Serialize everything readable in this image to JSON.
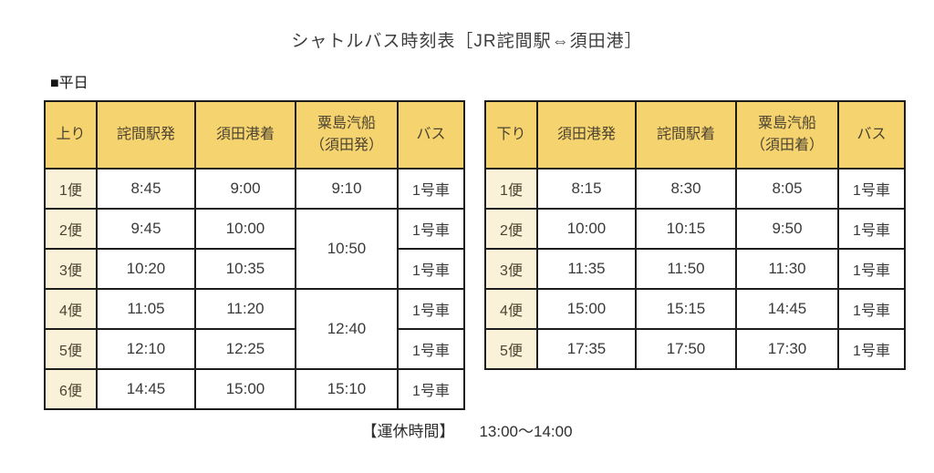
{
  "title": "シャトルバス時刻表［JR詫間駅⇔須田港］",
  "section_label": "■平日",
  "colors": {
    "header_bg": "#f5d36f",
    "trip_bg": "#faf2d8",
    "border": "#1d1d1d"
  },
  "tables": [
    {
      "name": "weekday-up",
      "headers": [
        {
          "label": "上り"
        },
        {
          "label": "詫間駅発"
        },
        {
          "label": "須田港着"
        },
        {
          "label": "粟島汽船",
          "sub": "（須田発）"
        },
        {
          "label": "バス"
        }
      ],
      "rows": [
        {
          "trip": "1便",
          "cells": [
            {
              "t": "8:45"
            },
            {
              "t": "9:00"
            },
            {
              "t": "9:10"
            },
            {
              "t": "1号車"
            }
          ]
        },
        {
          "trip": "2便",
          "cells": [
            {
              "t": "9:45"
            },
            {
              "t": "10:00"
            },
            {
              "t": "10:50",
              "rs": 2
            },
            {
              "t": "1号車"
            }
          ]
        },
        {
          "trip": "3便",
          "cells": [
            {
              "t": "10:20"
            },
            {
              "t": "10:35"
            },
            {
              "t": "1号車"
            }
          ]
        },
        {
          "trip": "4便",
          "cells": [
            {
              "t": "11:05"
            },
            {
              "t": "11:20"
            },
            {
              "t": "12:40",
              "rs": 2
            },
            {
              "t": "1号車"
            }
          ]
        },
        {
          "trip": "5便",
          "cells": [
            {
              "t": "12:10"
            },
            {
              "t": "12:25"
            },
            {
              "t": "1号車"
            }
          ]
        },
        {
          "trip": "6便",
          "cells": [
            {
              "t": "14:45"
            },
            {
              "t": "15:00"
            },
            {
              "t": "15:10"
            },
            {
              "t": "1号車"
            }
          ]
        }
      ]
    },
    {
      "name": "weekday-down",
      "headers": [
        {
          "label": "下り"
        },
        {
          "label": "須田港発"
        },
        {
          "label": "詫間駅着"
        },
        {
          "label": "粟島汽船",
          "sub": "（須田着）"
        },
        {
          "label": "バス"
        }
      ],
      "rows": [
        {
          "trip": "1便",
          "cells": [
            {
              "t": "8:15"
            },
            {
              "t": "8:30"
            },
            {
              "t": "8:05"
            },
            {
              "t": "1号車"
            }
          ]
        },
        {
          "trip": "2便",
          "cells": [
            {
              "t": "10:00"
            },
            {
              "t": "10:15"
            },
            {
              "t": "9:50"
            },
            {
              "t": "1号車"
            }
          ]
        },
        {
          "trip": "3便",
          "cells": [
            {
              "t": "11:35"
            },
            {
              "t": "11:50"
            },
            {
              "t": "11:30"
            },
            {
              "t": "1号車"
            }
          ]
        },
        {
          "trip": "4便",
          "cells": [
            {
              "t": "15:00"
            },
            {
              "t": "15:15"
            },
            {
              "t": "14:45"
            },
            {
              "t": "1号車"
            }
          ]
        },
        {
          "trip": "5便",
          "cells": [
            {
              "t": "17:35"
            },
            {
              "t": "17:50"
            },
            {
              "t": "17:30"
            },
            {
              "t": "1号車"
            }
          ]
        }
      ]
    }
  ],
  "note": {
    "label": "【運休時間】",
    "value": "13:00〜14:00"
  }
}
